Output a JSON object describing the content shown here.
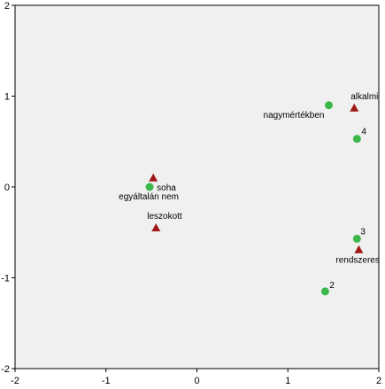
{
  "chart_data": {
    "type": "scatter",
    "title": "",
    "xlabel": "",
    "ylabel": "",
    "xlim": [
      -2,
      2
    ],
    "ylim": [
      -2,
      2
    ],
    "x_ticks": [
      -2,
      -1,
      0,
      1,
      2
    ],
    "y_ticks": [
      -2,
      -1,
      0,
      1,
      2
    ],
    "grid": false,
    "background_color": "#f0f0f0",
    "series": [
      {
        "marker": "circle",
        "color": "#3cb84a",
        "points": [
          {
            "label": "nagymértékben",
            "x": 1.45,
            "y": 0.9
          },
          {
            "label": "4",
            "x": 1.76,
            "y": 0.53
          },
          {
            "label": "egyáltalán nem",
            "x": -0.52,
            "y": 0.0
          },
          {
            "label": "3",
            "x": 1.76,
            "y": -0.57
          },
          {
            "label": "2",
            "x": 1.41,
            "y": -1.15
          }
        ]
      },
      {
        "marker": "triangle",
        "color": "#a01818",
        "points": [
          {
            "label": "alkalmi",
            "x": 1.73,
            "y": 0.87
          },
          {
            "label": "soha",
            "x": -0.48,
            "y": 0.1
          },
          {
            "label": "leszokott",
            "x": -0.45,
            "y": -0.45
          },
          {
            "label": "rendszeres",
            "x": 1.78,
            "y": -0.69
          }
        ]
      }
    ]
  }
}
